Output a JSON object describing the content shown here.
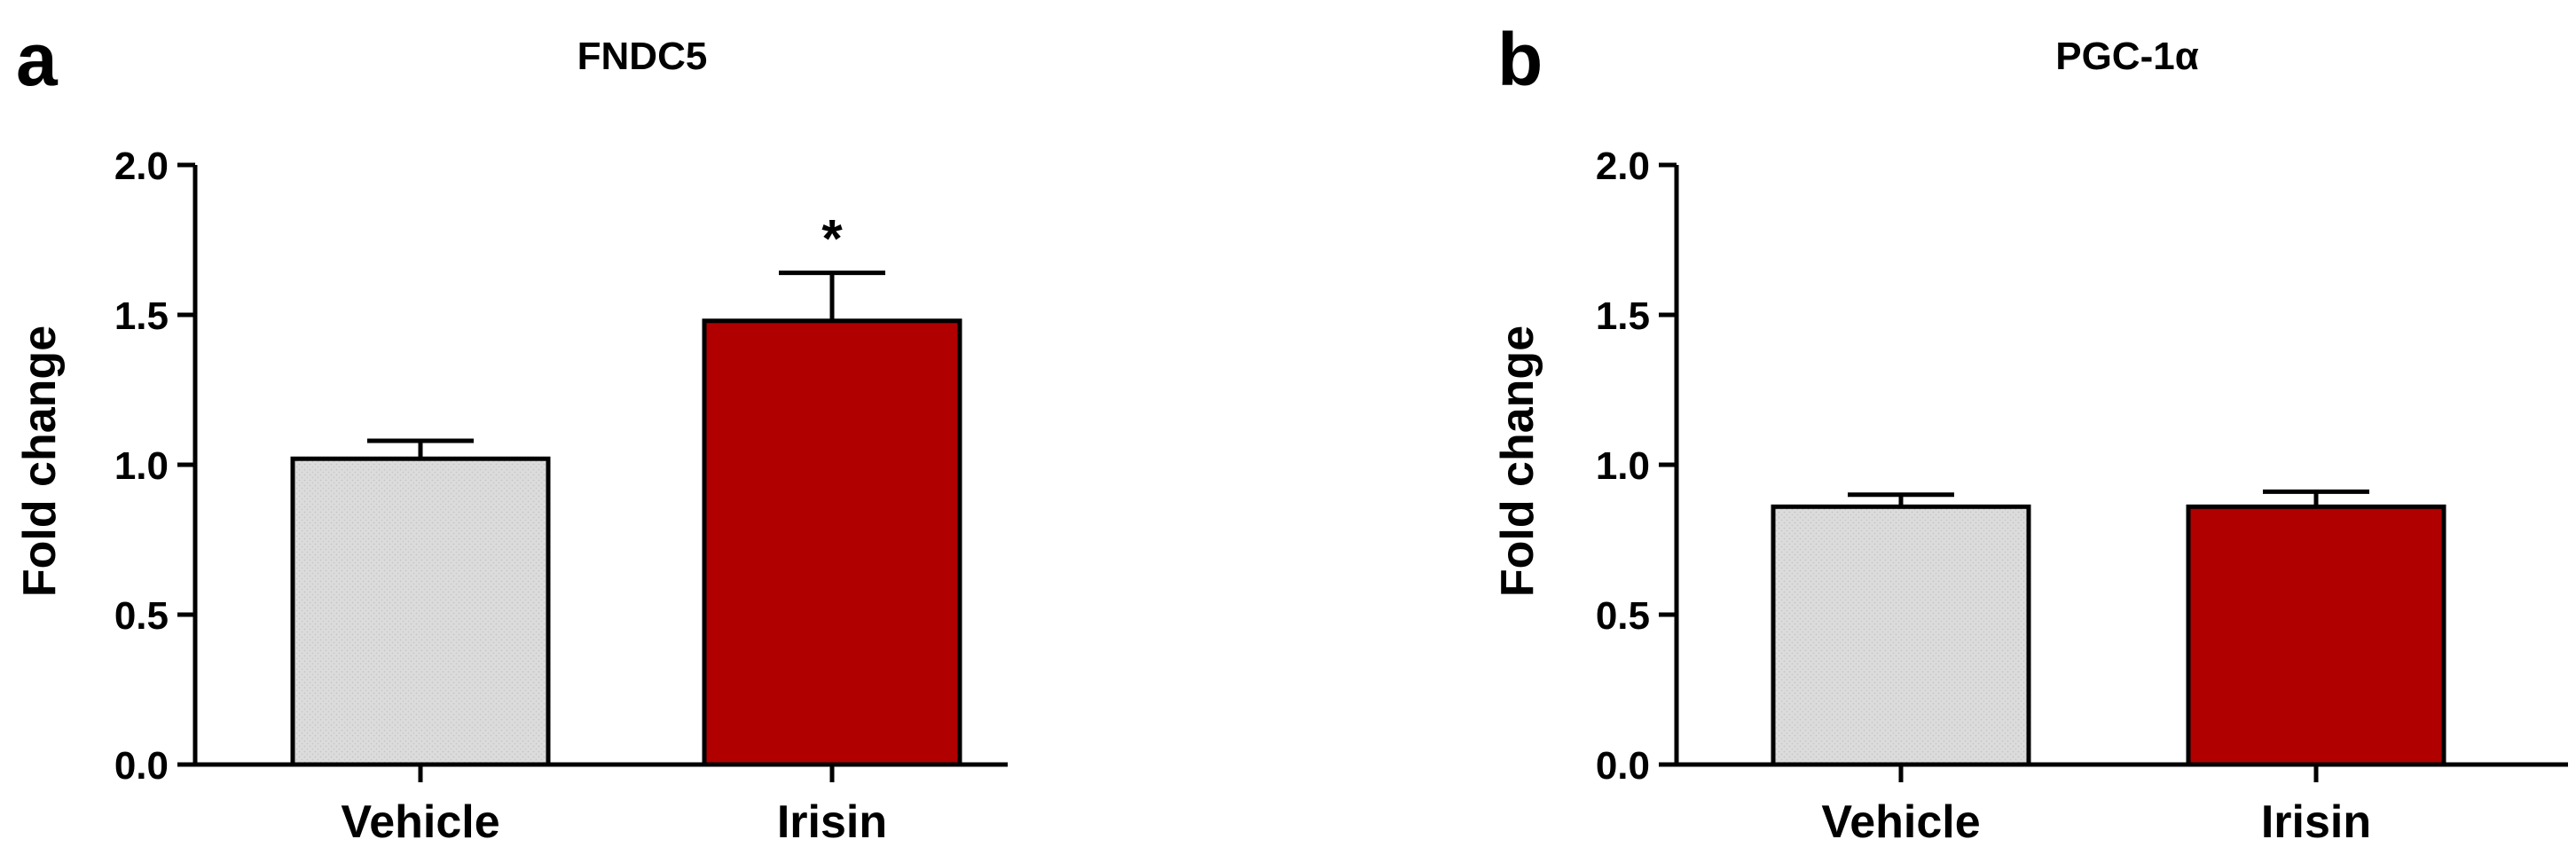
{
  "colors": {
    "vehicle": "#dcdcdc",
    "irisin": "#b00000",
    "axis": "#000000"
  },
  "chart_data": [
    {
      "type": "bar",
      "panel": "a",
      "title": "FNDC5",
      "ylabel": "Fold change",
      "xlabel": "",
      "categories": [
        "Vehicle",
        "Irisin"
      ],
      "values": [
        1.02,
        1.48
      ],
      "error_up": [
        0.06,
        0.16
      ],
      "ylim": [
        0,
        2.0
      ],
      "yticks": [
        "0.0",
        "0.5",
        "1.0",
        "1.5",
        "2.0"
      ],
      "significance": [
        "",
        "*"
      ],
      "bar_colors": [
        "#dcdcdc",
        "#b00000"
      ]
    },
    {
      "type": "bar",
      "panel": "b",
      "title": "PGC-1α",
      "ylabel": "Fold change",
      "xlabel": "",
      "categories": [
        "Vehicle",
        "Irisin"
      ],
      "values": [
        0.86,
        0.86
      ],
      "error_up": [
        0.04,
        0.05
      ],
      "ylim": [
        0,
        2.0
      ],
      "yticks": [
        "0.0",
        "0.5",
        "1.0",
        "1.5",
        "2.0"
      ],
      "significance": [
        "",
        ""
      ],
      "bar_colors": [
        "#dcdcdc",
        "#b00000"
      ]
    }
  ]
}
